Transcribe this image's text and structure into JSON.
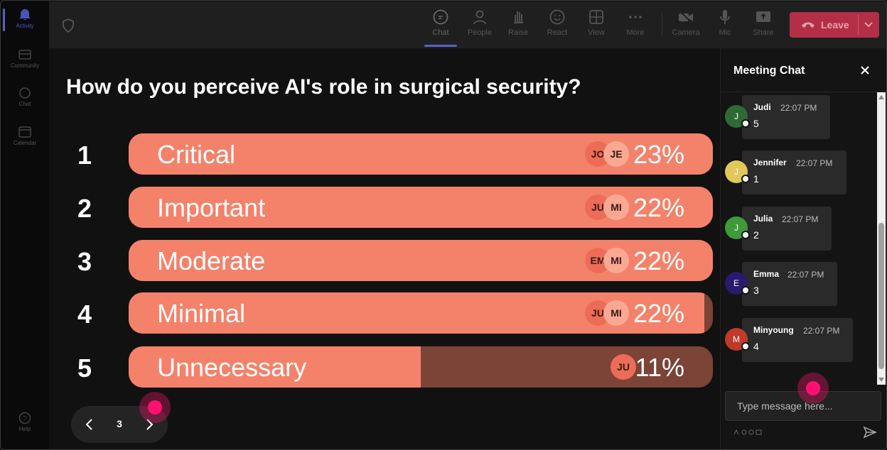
{
  "rail": {
    "items": [
      {
        "label": "Activity",
        "icon": "bell-icon",
        "active": true
      },
      {
        "label": "Community",
        "icon": "community-icon",
        "active": false
      },
      {
        "label": "Chat",
        "icon": "chat-icon",
        "active": false
      },
      {
        "label": "Calendar",
        "icon": "calendar-icon",
        "active": false
      }
    ],
    "help_label": "Help"
  },
  "toolbar": {
    "items": [
      {
        "label": "Chat",
        "icon": "chat-icon"
      },
      {
        "label": "People",
        "icon": "people-icon"
      },
      {
        "label": "Raise",
        "icon": "raise-hand-icon"
      },
      {
        "label": "React",
        "icon": "react-icon"
      },
      {
        "label": "View",
        "icon": "view-icon"
      },
      {
        "label": "More",
        "icon": "more-icon"
      },
      {
        "label": "Camera",
        "icon": "camera-off-icon"
      },
      {
        "label": "Mic",
        "icon": "mic-icon"
      },
      {
        "label": "Share",
        "icon": "share-icon"
      }
    ],
    "leave_label": "Leave",
    "accent": "#5b5fc7",
    "leave_color": "#c4314b"
  },
  "poll": {
    "question": "How do you perceive AI's role in surgical security?",
    "options": [
      {
        "num": "1",
        "label": "Critical",
        "percent": "23%",
        "fill": 1.0,
        "avatars": [
          "JO",
          "JE"
        ]
      },
      {
        "num": "2",
        "label": "Important",
        "percent": "22%",
        "fill": 1.0,
        "avatars": [
          "JU",
          "MI"
        ]
      },
      {
        "num": "3",
        "label": "Moderate",
        "percent": "22%",
        "fill": 1.0,
        "avatars": [
          "EM",
          "MI"
        ]
      },
      {
        "num": "4",
        "label": "Minimal",
        "percent": "22%",
        "fill": 0.985,
        "avatars": [
          "JU",
          "MI"
        ]
      },
      {
        "num": "5",
        "label": "Unnecessary",
        "percent": "11%",
        "fill": 0.5,
        "avatars": [
          "JU"
        ]
      }
    ],
    "fill_color": "#f4826a",
    "track_color": "#7b4436",
    "page": "3"
  },
  "chat": {
    "title": "Meeting Chat",
    "messages": [
      {
        "initial": "J",
        "name": "Judi",
        "time": "22:07 PM",
        "text": "5",
        "color": "#2e6b34"
      },
      {
        "initial": "J",
        "name": "Jennifer",
        "time": "22:07 PM",
        "text": "1",
        "color": "#e0c85a"
      },
      {
        "initial": "J",
        "name": "Julia",
        "time": "22:07 PM",
        "text": "2",
        "color": "#3e9a3a"
      },
      {
        "initial": "E",
        "name": "Emma",
        "time": "22:07 PM",
        "text": "3",
        "color": "#2a1a6e"
      },
      {
        "initial": "M",
        "name": "Minyoung",
        "time": "22:07 PM",
        "text": "4",
        "color": "#c0392b"
      }
    ],
    "input_placeholder": "Type message here..."
  }
}
